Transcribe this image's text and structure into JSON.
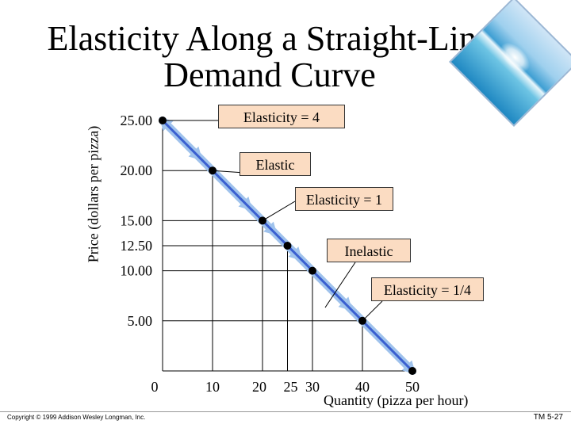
{
  "slide": {
    "title": "Elasticity Along a Straight-Line Demand Curve",
    "copyright": "Copyright © 1999 Addison Wesley Longman, Inc.",
    "slide_id": "TM 5-27"
  },
  "chart_data": {
    "type": "line",
    "title": "Elasticity Along a Straight-Line Demand Curve",
    "xlabel": "Quantity (pizza per hour)",
    "ylabel": "Price (dollars per pizza)",
    "xlim": [
      0,
      50
    ],
    "ylim": [
      0,
      25
    ],
    "x_ticks": [
      {
        "value": 0,
        "label": "0"
      },
      {
        "value": 10,
        "label": "10"
      },
      {
        "value": 20,
        "label": "20"
      },
      {
        "value": 25,
        "label": "25"
      },
      {
        "value": 30,
        "label": "30"
      },
      {
        "value": 40,
        "label": "40"
      },
      {
        "value": 50,
        "label": "50"
      }
    ],
    "y_ticks": [
      {
        "value": 25,
        "label": "25.00"
      },
      {
        "value": 20,
        "label": "20.00"
      },
      {
        "value": 15,
        "label": "15.00"
      },
      {
        "value": 12.5,
        "label": "12.50"
      },
      {
        "value": 10,
        "label": "10.00"
      },
      {
        "value": 5,
        "label": "5.00"
      }
    ],
    "series": [
      {
        "x": [
          0,
          10,
          20,
          25,
          30,
          40,
          50
        ],
        "y": [
          25,
          20,
          15,
          12.5,
          10,
          5,
          0
        ]
      }
    ],
    "annotations": [
      {
        "text": "Elasticity = 4",
        "x": 0,
        "y": 25
      },
      {
        "text": "Elastic",
        "x": 10,
        "y": 20
      },
      {
        "text": "Elasticity = 1",
        "x": 20,
        "y": 15
      },
      {
        "text": "Inelastic",
        "x": 30,
        "y": 10
      },
      {
        "text": "Elasticity = 1/4",
        "x": 40,
        "y": 5
      }
    ],
    "colors": {
      "line": "#3a5fd0",
      "band": "#9fc2ec",
      "callout_fill": "#fbdcc2"
    }
  }
}
